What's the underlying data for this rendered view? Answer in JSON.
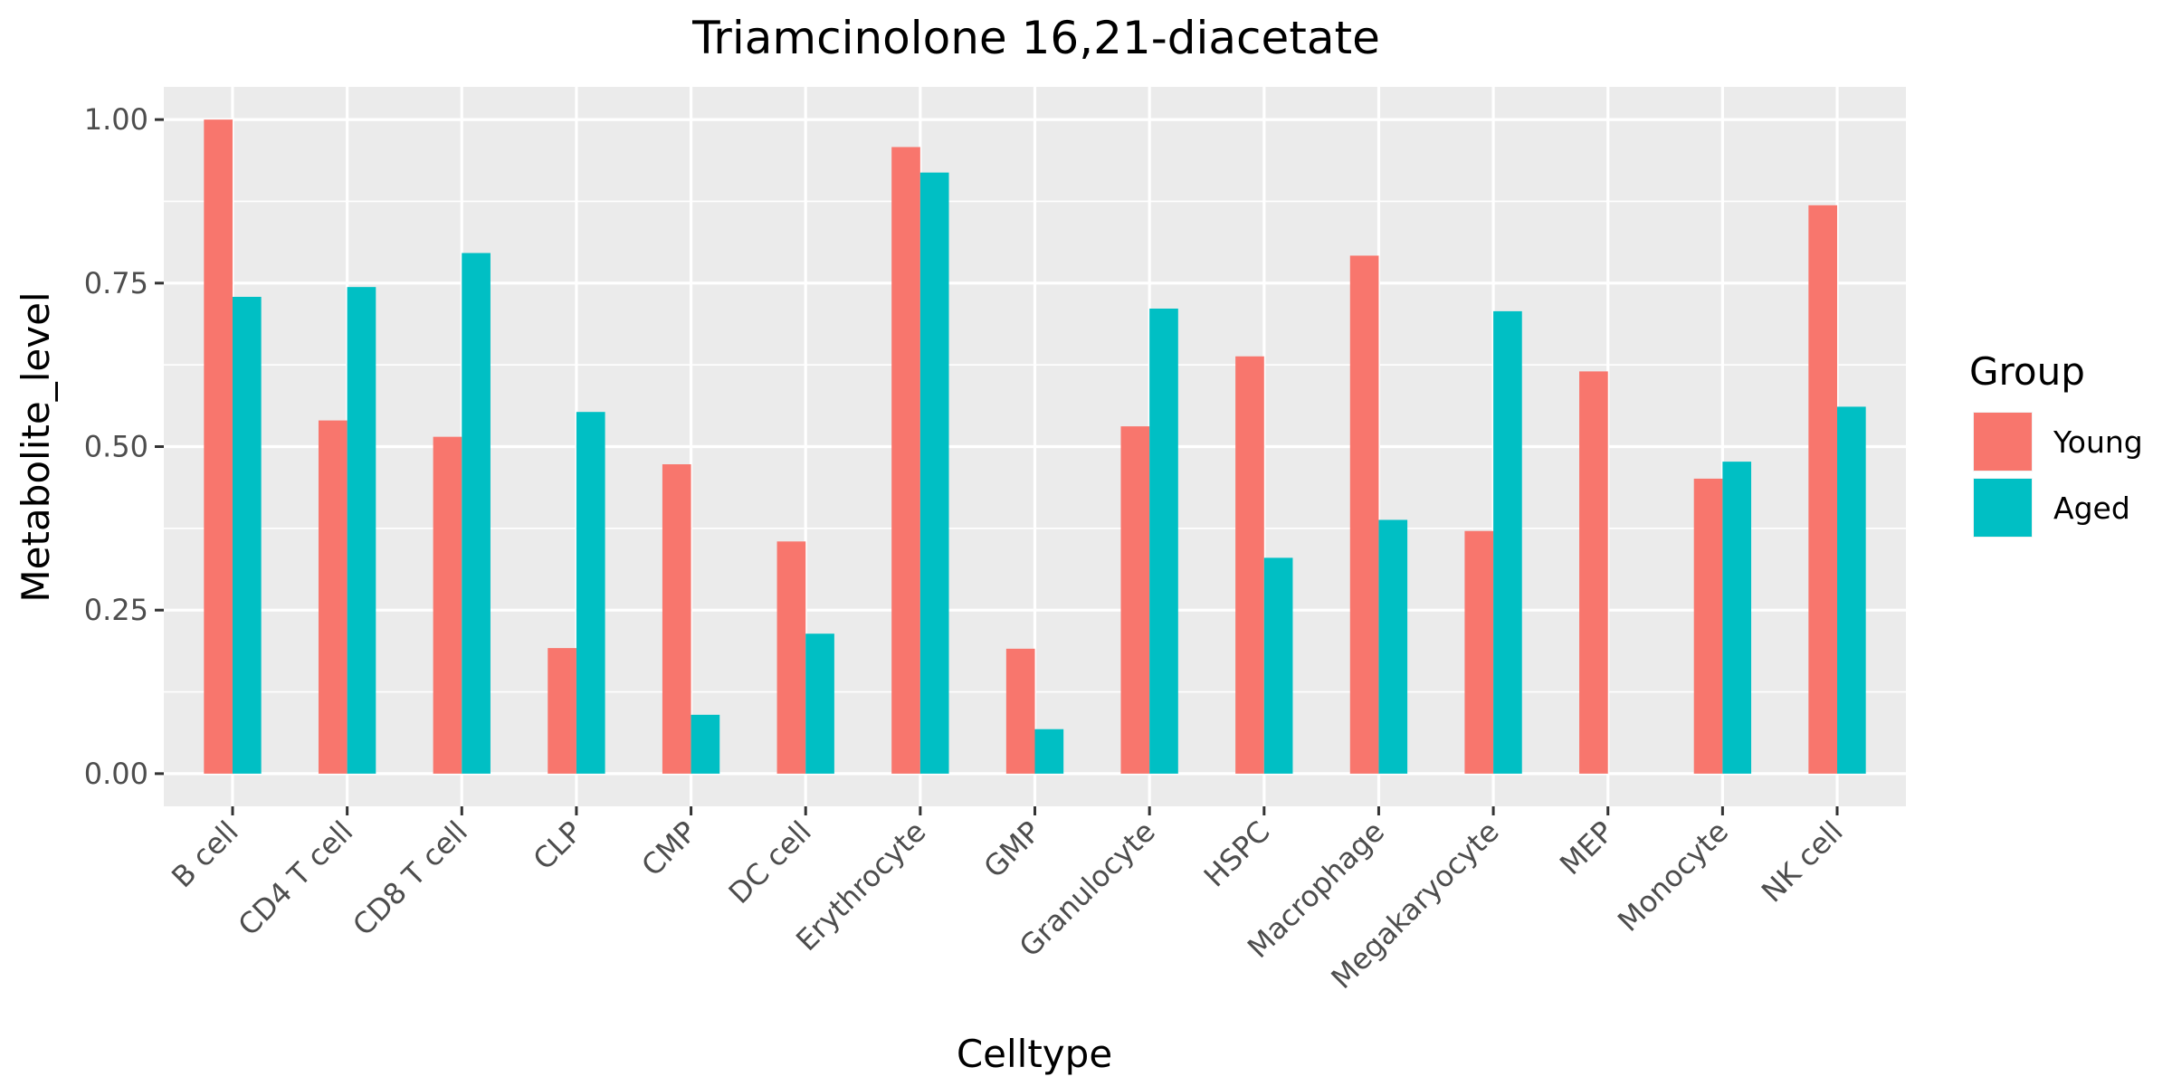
{
  "chart_data": {
    "type": "bar",
    "title": "Triamcinolone 16,21-diacetate",
    "xlabel": "Celltype",
    "ylabel": "Metabolite_level",
    "ylim": [
      -0.05,
      1.05
    ],
    "yticks": [
      "0.00",
      "0.25",
      "0.50",
      "0.75",
      "1.00"
    ],
    "grid": true,
    "legend_position": "right",
    "legend_title": "Group",
    "categories": [
      "B cell",
      "CD4 T cell",
      "CD8 T cell",
      "CLP",
      "CMP",
      "DC cell",
      "Erythrocyte",
      "GMP",
      "Granulocyte",
      "HSPC",
      "Macrophage",
      "Megakaryocyte",
      "MEP",
      "Monocyte",
      "NK cell"
    ],
    "series": [
      {
        "name": "Young",
        "color": "#F8766D",
        "values": [
          1.0,
          0.54,
          0.515,
          0.192,
          0.473,
          0.355,
          0.958,
          0.191,
          0.531,
          0.638,
          0.792,
          0.371,
          0.615,
          0.451,
          0.869
        ]
      },
      {
        "name": "Aged",
        "color": "#00BFC4",
        "values": [
          0.729,
          0.744,
          0.796,
          0.553,
          0.09,
          0.214,
          0.919,
          0.068,
          0.711,
          0.33,
          0.388,
          0.707,
          null,
          0.477,
          0.561
        ]
      }
    ]
  }
}
